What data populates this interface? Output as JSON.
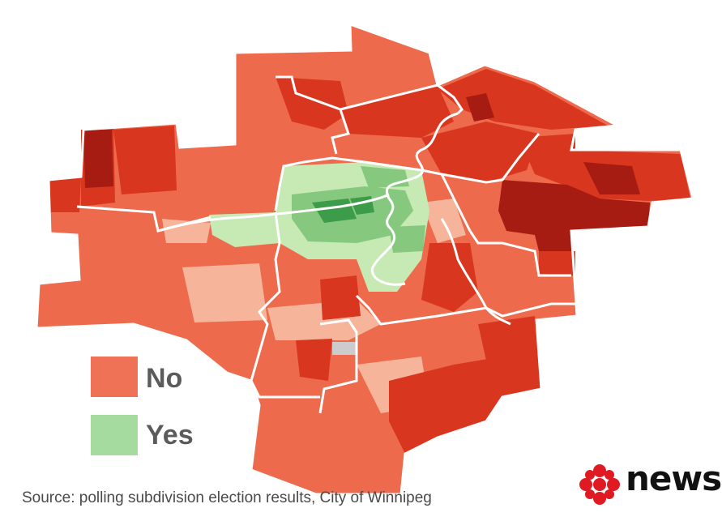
{
  "colors": {
    "no_swatch": "#ef7256",
    "yes_swatch": "#a6dba0",
    "no_light": "#f6b59b",
    "no_mid": "#ee6a4d",
    "no_strong": "#d9361f",
    "no_darkest": "#a71c12",
    "yes_light": "#c7e9b4",
    "yes_mid": "#86c97e",
    "yes_dark": "#3d9c4a",
    "no_data": "#cccccc",
    "boundary": "#ffffff",
    "logo_red": "#e01a22"
  },
  "legend": {
    "no_label": "No",
    "yes_label": "Yes"
  },
  "source": "Source: polling subdivision election results, City of Winnipeg",
  "logo": {
    "text": "news",
    "icon": "cbc-gem-icon"
  }
}
